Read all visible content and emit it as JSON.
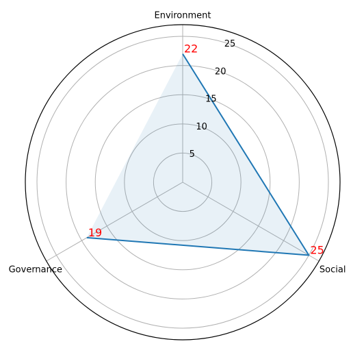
{
  "chart_data": {
    "type": "radar",
    "categories": [
      "Environment",
      "Social",
      "Governance"
    ],
    "series": [
      {
        "values": [
          22,
          25,
          19
        ]
      }
    ],
    "data_labels": [
      "22",
      "25",
      "19"
    ],
    "radial_ticks": [
      "5",
      "10",
      "15",
      "20",
      "25"
    ],
    "radial_tick_values": [
      5,
      10,
      15,
      20,
      25
    ],
    "rlim": [
      0,
      27
    ],
    "grid": true,
    "colors": {
      "line": "#1f77b4",
      "fill": "#1f77b4",
      "data_label": "#ff0000",
      "grid": "#b0b0b0",
      "frame": "#000000"
    }
  }
}
